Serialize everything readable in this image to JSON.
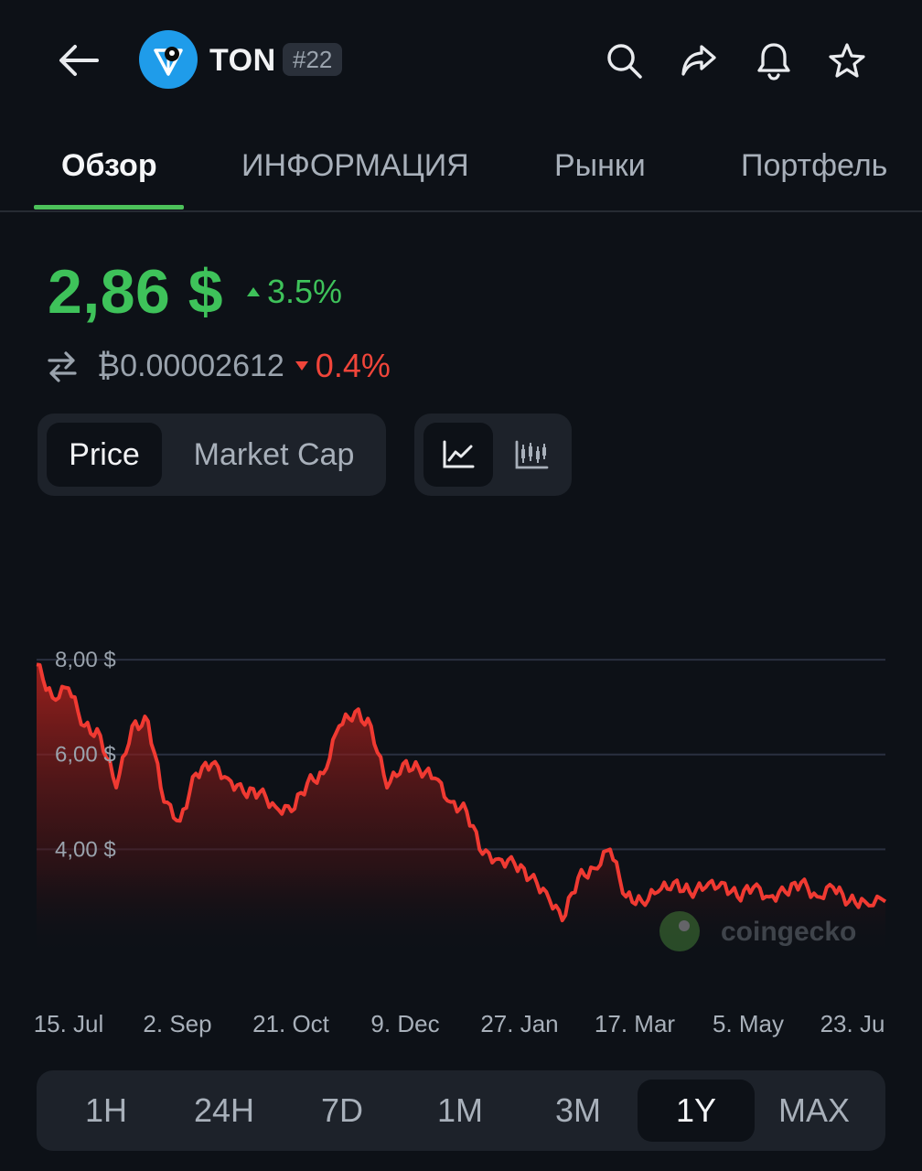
{
  "header": {
    "coin_symbol": "TON",
    "rank": "#22",
    "icons": [
      "back-arrow-icon",
      "search-icon",
      "share-icon",
      "bell-icon",
      "star-icon"
    ]
  },
  "tabs": [
    {
      "label": "Обзор",
      "active": true
    },
    {
      "label": "ИНФОРМАЦИЯ",
      "active": false
    },
    {
      "label": "Рынки",
      "active": false
    },
    {
      "label": "Портфель",
      "active": false
    }
  ],
  "price": {
    "value": "2,86 $",
    "change": "3.5%",
    "btc_value": "₿0.00002612",
    "btc_change": "0.4%"
  },
  "toggles": {
    "metric": [
      "Price",
      "Market Cap"
    ],
    "metric_active": "Price",
    "chart_type_icons": [
      "line-chart-icon",
      "candlestick-chart-icon"
    ]
  },
  "watermark": "coingecko",
  "chart_data": {
    "type": "area",
    "title": "",
    "xlabel": "",
    "ylabel": "",
    "y_tick_labels": [
      "8,00 $",
      "6,00 $",
      "4,00 $"
    ],
    "y_ticks": [
      8,
      6,
      4
    ],
    "ylim": [
      1.75,
      8.6
    ],
    "x_tick_labels": [
      "15. Jul",
      "2. Sep",
      "21. Oct",
      "9. Dec",
      "27. Jan",
      "17. Mar",
      "5. May",
      "23. Ju"
    ],
    "x": [
      "2024-07-15",
      "2024-07-22",
      "2024-07-29",
      "2024-08-05",
      "2024-08-12",
      "2024-08-19",
      "2024-08-26",
      "2024-09-02",
      "2024-09-09",
      "2024-09-16",
      "2024-09-23",
      "2024-09-30",
      "2024-10-07",
      "2024-10-14",
      "2024-10-21",
      "2024-10-28",
      "2024-11-04",
      "2024-11-11",
      "2024-11-18",
      "2024-11-25",
      "2024-12-02",
      "2024-12-09",
      "2024-12-16",
      "2024-12-23",
      "2024-12-30",
      "2025-01-06",
      "2025-01-13",
      "2025-01-20",
      "2025-01-27",
      "2025-02-03",
      "2025-02-10",
      "2025-02-17",
      "2025-02-24",
      "2025-03-03",
      "2025-03-10",
      "2025-03-17",
      "2025-03-24",
      "2025-03-31",
      "2025-04-07",
      "2025-04-14",
      "2025-04-21",
      "2025-04-28",
      "2025-05-05",
      "2025-05-12",
      "2025-05-19",
      "2025-05-26",
      "2025-06-02",
      "2025-06-09",
      "2025-06-16",
      "2025-06-23",
      "2025-06-30",
      "2025-07-07",
      "2025-07-14",
      "2025-07-23"
    ],
    "series": [
      {
        "color": "#f03a32",
        "values": [
          7.9,
          7.2,
          7.4,
          6.6,
          6.4,
          5.3,
          6.6,
          6.7,
          5.0,
          4.6,
          5.6,
          5.8,
          5.5,
          5.2,
          5.2,
          4.9,
          4.8,
          5.4,
          5.6,
          6.6,
          6.9,
          6.6,
          5.3,
          5.8,
          5.7,
          5.5,
          5.0,
          4.8,
          3.9,
          3.8,
          3.7,
          3.4,
          3.1,
          2.5,
          3.4,
          3.6,
          4.0,
          3.0,
          2.9,
          3.1,
          3.3,
          3.1,
          3.2,
          3.3,
          3.0,
          3.2,
          3.0,
          3.1,
          3.3,
          3.0,
          3.2,
          2.9,
          2.9,
          2.9
        ]
      }
    ]
  },
  "range": {
    "options": [
      "1H",
      "24H",
      "7D",
      "1M",
      "3M",
      "1Y",
      "MAX"
    ],
    "active": "1Y"
  }
}
